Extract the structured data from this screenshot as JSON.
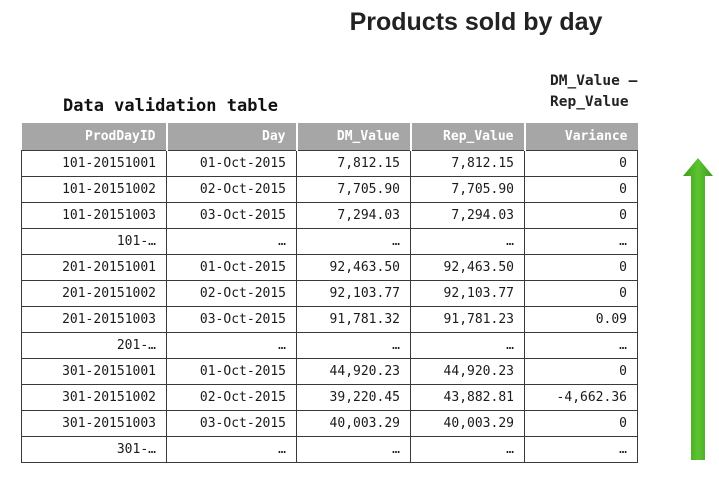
{
  "title": "Products sold by day",
  "formula_line1": "DM_Value –",
  "formula_line2": "Rep_Value",
  "subtitle": "Data validation table",
  "table": {
    "headers": [
      "ProdDayID",
      "Day",
      "DM_Value",
      "Rep_Value",
      "Variance"
    ],
    "rows": [
      [
        "101-20151001",
        "01-Oct-2015",
        "7,812.15",
        "7,812.15",
        "0"
      ],
      [
        "101-20151002",
        "02-Oct-2015",
        "7,705.90",
        "7,705.90",
        "0"
      ],
      [
        "101-20151003",
        "03-Oct-2015",
        "7,294.03",
        "7,294.03",
        "0"
      ],
      [
        "101-…",
        "…",
        "…",
        "…",
        "…"
      ],
      [
        "201-20151001",
        "01-Oct-2015",
        "92,463.50",
        "92,463.50",
        "0"
      ],
      [
        "201-20151002",
        "02-Oct-2015",
        "92,103.77",
        "92,103.77",
        "0"
      ],
      [
        "201-20151003",
        "03-Oct-2015",
        "91,781.32",
        "91,781.23",
        "0.09"
      ],
      [
        "201-…",
        "…",
        "…",
        "…",
        "…"
      ],
      [
        "301-20151001",
        "01-Oct-2015",
        "44,920.23",
        "44,920.23",
        "0"
      ],
      [
        "301-20151002",
        "02-Oct-2015",
        "39,220.45",
        "43,882.81",
        "-4,662.36"
      ],
      [
        "301-20151003",
        "03-Oct-2015",
        "40,003.29",
        "40,003.29",
        "0"
      ],
      [
        "301-…",
        "…",
        "…",
        "…",
        "…"
      ]
    ]
  },
  "colors": {
    "header_bg": "#a6a6a6",
    "arrow_green": "#4caf25"
  },
  "icons": {
    "arrow": "up-arrow-icon"
  }
}
